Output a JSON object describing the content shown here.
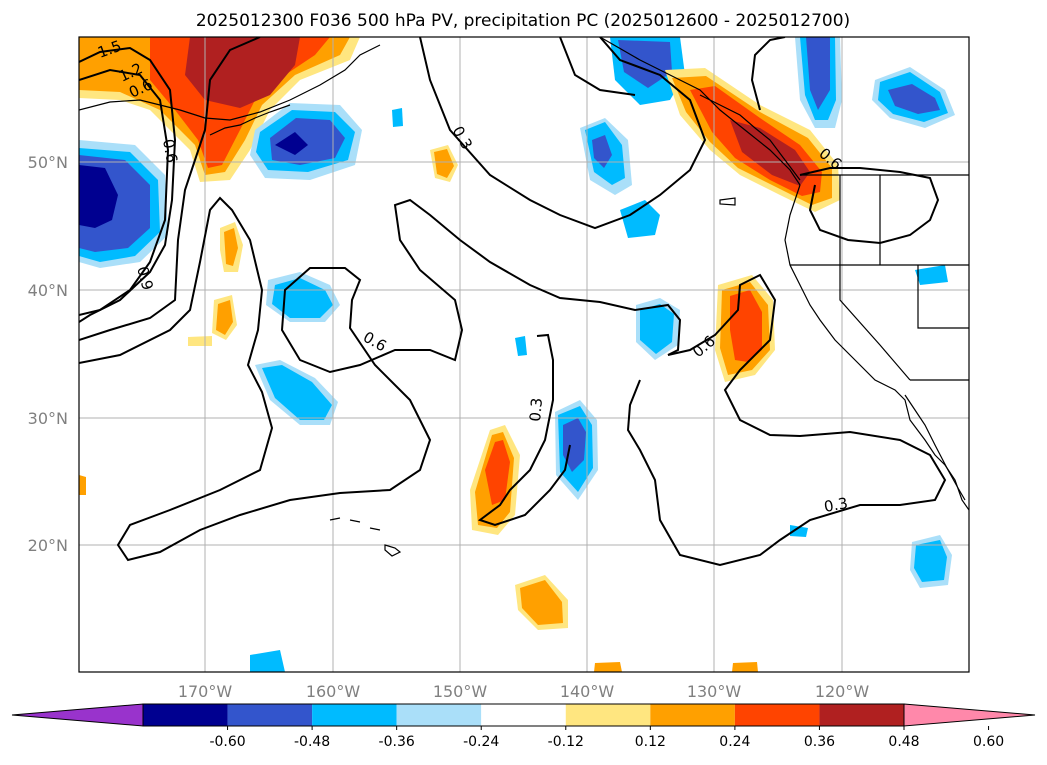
{
  "title": "2025012300 F036 500 hPa PV, precipitation PC (2025012600 - 2025012700)",
  "colors": {
    "levels": [
      "#9933cc",
      "#000090",
      "#3355cc",
      "#00bbff",
      "#aadff9",
      "#ffffff",
      "#ffe680",
      "#ffa000",
      "#ff4400",
      "#b02020",
      "#ff88aa"
    ],
    "contour": "#000000",
    "coast": "#000000",
    "grid": "#b0b0b0"
  },
  "lat_ticks": [
    "50°N",
    "40°N",
    "30°N",
    "20°N"
  ],
  "lon_ticks": [
    "170°W",
    "160°W",
    "150°W",
    "140°W",
    "130°W",
    "120°W"
  ],
  "colorbar": {
    "tick_labels": [
      "-0.60",
      "-0.48",
      "-0.36",
      "-0.24",
      "-0.12",
      "0.12",
      "0.24",
      "0.36",
      "0.48",
      "0.60"
    ]
  },
  "contour_labels": [
    {
      "text": "1.5"
    },
    {
      "text": "1.2"
    },
    {
      "text": "0.6"
    },
    {
      "text": "0.6"
    },
    {
      "text": "0.3"
    },
    {
      "text": "0.9"
    },
    {
      "text": "0.6"
    },
    {
      "text": "0.3"
    },
    {
      "text": "0.6"
    },
    {
      "text": "0.6"
    },
    {
      "text": "0.3"
    }
  ]
}
